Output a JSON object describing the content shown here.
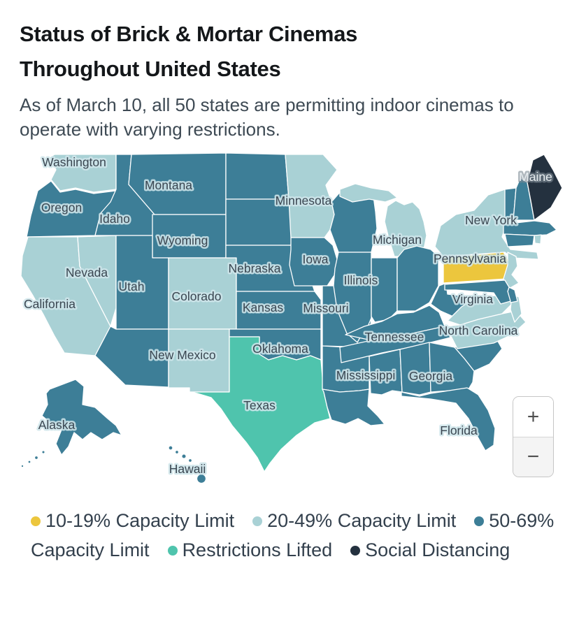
{
  "page": {
    "title": "Status of Brick & Mortar Cinemas Throughout United States",
    "subtitle": "As of March 10, all 50 states are permitting indoor cinemas to operate with varying restrictions."
  },
  "map_controls": {
    "zoom_in": "+",
    "zoom_out": "−"
  },
  "chart_data": {
    "type": "choropleth",
    "region": "United States",
    "title": "Status of Brick & Mortar Cinemas Throughout United States",
    "subtitle": "As of March 10, all 50 states are permitting indoor cinemas to operate with varying restrictions.",
    "legend_position": "bottom",
    "label_text_color": "#3a4651",
    "categories": [
      {
        "key": "cap_10_19",
        "label": "10-19% Capacity Limit",
        "color": "#ecc63d"
      },
      {
        "key": "cap_20_49",
        "label": "20-49% Capacity Limit",
        "color": "#a9d1d5"
      },
      {
        "key": "cap_50_69",
        "label": "50-69% Capacity Limit",
        "color": "#3d7e97"
      },
      {
        "key": "lifted",
        "label": "Restrictions Lifted",
        "color": "#4fc4ad"
      },
      {
        "key": "social",
        "label": "Social Distancing",
        "color": "#24313f"
      }
    ],
    "states": [
      {
        "abbr": "WA",
        "name": "Washington",
        "category": "cap_20_49",
        "labeled": true
      },
      {
        "abbr": "OR",
        "name": "Oregon",
        "category": "cap_50_69",
        "labeled": true
      },
      {
        "abbr": "CA",
        "name": "California",
        "category": "cap_20_49",
        "labeled": true
      },
      {
        "abbr": "NV",
        "name": "Nevada",
        "category": "cap_20_49",
        "labeled": true
      },
      {
        "abbr": "ID",
        "name": "Idaho",
        "category": "cap_50_69",
        "labeled": true
      },
      {
        "abbr": "MT",
        "name": "Montana",
        "category": "cap_50_69",
        "labeled": true
      },
      {
        "abbr": "WY",
        "name": "Wyoming",
        "category": "cap_50_69",
        "labeled": true
      },
      {
        "abbr": "UT",
        "name": "Utah",
        "category": "cap_50_69",
        "labeled": true
      },
      {
        "abbr": "AZ",
        "name": "Arizona",
        "category": "cap_50_69",
        "labeled": false
      },
      {
        "abbr": "CO",
        "name": "Colorado",
        "category": "cap_20_49",
        "labeled": true
      },
      {
        "abbr": "NM",
        "name": "New Mexico",
        "category": "cap_20_49",
        "labeled": true
      },
      {
        "abbr": "ND",
        "name": "North Dakota",
        "category": "cap_50_69",
        "labeled": false
      },
      {
        "abbr": "SD",
        "name": "South Dakota",
        "category": "cap_50_69",
        "labeled": false
      },
      {
        "abbr": "NE",
        "name": "Nebraska",
        "category": "cap_50_69",
        "labeled": true
      },
      {
        "abbr": "KS",
        "name": "Kansas",
        "category": "cap_50_69",
        "labeled": true
      },
      {
        "abbr": "OK",
        "name": "Oklahoma",
        "category": "cap_50_69",
        "labeled": true
      },
      {
        "abbr": "TX",
        "name": "Texas",
        "category": "lifted",
        "labeled": true
      },
      {
        "abbr": "MN",
        "name": "Minnesota",
        "category": "cap_20_49",
        "labeled": true
      },
      {
        "abbr": "IA",
        "name": "Iowa",
        "category": "cap_50_69",
        "labeled": true
      },
      {
        "abbr": "MO",
        "name": "Missouri",
        "category": "cap_50_69",
        "labeled": true
      },
      {
        "abbr": "AR",
        "name": "Arkansas",
        "category": "cap_50_69",
        "labeled": false
      },
      {
        "abbr": "LA",
        "name": "Louisiana",
        "category": "cap_50_69",
        "labeled": false
      },
      {
        "abbr": "WI",
        "name": "Wisconsin",
        "category": "cap_50_69",
        "labeled": false
      },
      {
        "abbr": "IL",
        "name": "Illinois",
        "category": "cap_50_69",
        "labeled": true
      },
      {
        "abbr": "MI",
        "name": "Michigan",
        "category": "cap_20_49",
        "labeled": true
      },
      {
        "abbr": "IN",
        "name": "Indiana",
        "category": "cap_50_69",
        "labeled": false
      },
      {
        "abbr": "OH",
        "name": "Ohio",
        "category": "cap_50_69",
        "labeled": false
      },
      {
        "abbr": "KY",
        "name": "Kentucky",
        "category": "cap_50_69",
        "labeled": false
      },
      {
        "abbr": "WV",
        "name": "West Virginia",
        "category": "cap_50_69",
        "labeled": false
      },
      {
        "abbr": "TN",
        "name": "Tennessee",
        "category": "cap_50_69",
        "labeled": true
      },
      {
        "abbr": "MS",
        "name": "Mississippi",
        "category": "cap_50_69",
        "labeled": true
      },
      {
        "abbr": "AL",
        "name": "Alabama",
        "category": "cap_50_69",
        "labeled": false
      },
      {
        "abbr": "GA",
        "name": "Georgia",
        "category": "cap_50_69",
        "labeled": true
      },
      {
        "abbr": "SC",
        "name": "South Carolina",
        "category": "cap_50_69",
        "labeled": false
      },
      {
        "abbr": "NC",
        "name": "North Carolina",
        "category": "cap_20_49",
        "labeled": true
      },
      {
        "abbr": "VA",
        "name": "Virginia",
        "category": "cap_20_49",
        "labeled": true
      },
      {
        "abbr": "FL",
        "name": "Florida",
        "category": "cap_50_69",
        "labeled": true
      },
      {
        "abbr": "NY",
        "name": "New York",
        "category": "cap_20_49",
        "labeled": true
      },
      {
        "abbr": "PA",
        "name": "Pennsylvania",
        "category": "cap_10_19",
        "labeled": true
      },
      {
        "abbr": "NJ",
        "name": "New Jersey",
        "category": "cap_20_49",
        "labeled": false
      },
      {
        "abbr": "DE",
        "name": "Delaware",
        "category": "cap_50_69",
        "labeled": false
      },
      {
        "abbr": "MD",
        "name": "Maryland",
        "category": "cap_50_69",
        "labeled": false
      },
      {
        "abbr": "VT",
        "name": "Vermont",
        "category": "cap_50_69",
        "labeled": false
      },
      {
        "abbr": "NH",
        "name": "New Hampshire",
        "category": "cap_50_69",
        "labeled": false
      },
      {
        "abbr": "MA",
        "name": "Massachusetts",
        "category": "cap_50_69",
        "labeled": false
      },
      {
        "abbr": "RI",
        "name": "Rhode Island",
        "category": "cap_20_49",
        "labeled": false
      },
      {
        "abbr": "CT",
        "name": "Connecticut",
        "category": "cap_50_69",
        "labeled": false
      },
      {
        "abbr": "ME",
        "name": "Maine",
        "category": "social",
        "labeled": true
      },
      {
        "abbr": "AK",
        "name": "Alaska",
        "category": "cap_50_69",
        "labeled": true
      },
      {
        "abbr": "HI",
        "name": "Hawaii",
        "category": "cap_50_69",
        "labeled": true
      }
    ]
  }
}
